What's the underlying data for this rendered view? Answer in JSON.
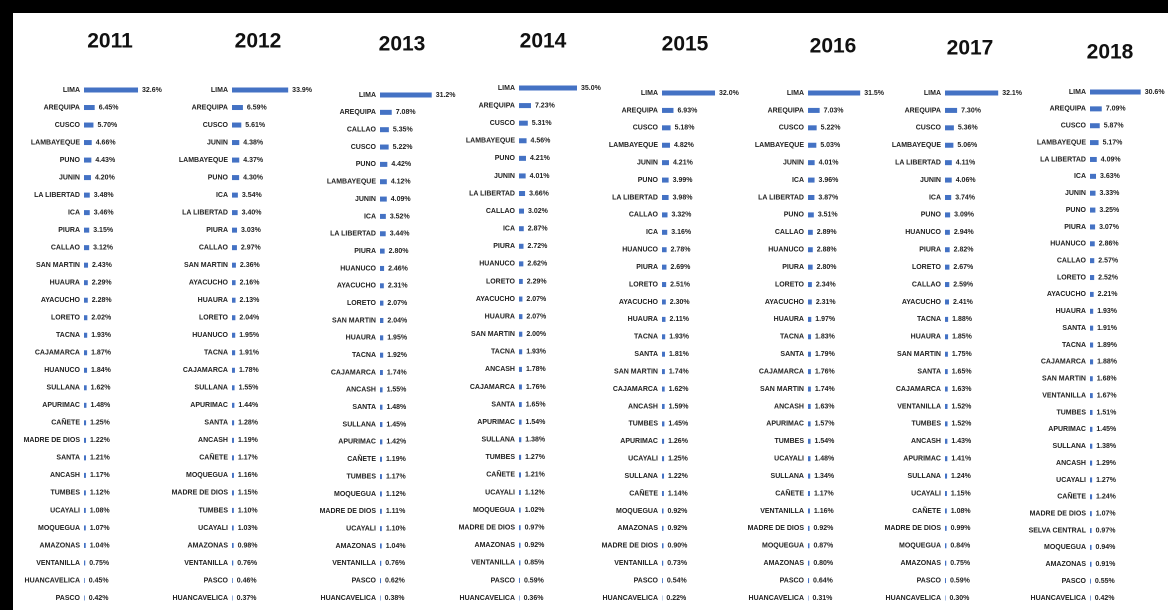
{
  "chart_data": [
    {
      "type": "bar",
      "orientation": "horizontal",
      "title": "2011",
      "color": "#4472c4",
      "xlim": [
        0,
        35
      ],
      "categories": [
        "LIMA",
        "AREQUIPA",
        "CUSCO",
        "LAMBAYEQUE",
        "PUNO",
        "JUNIN",
        "LA LIBERTAD",
        "ICA",
        "PIURA",
        "CALLAO",
        "SAN MARTIN",
        "HUAURA",
        "AYACUCHO",
        "LORETO",
        "TACNA",
        "CAJAMARCA",
        "HUANUCO",
        "SULLANA",
        "APURIMAC",
        "CAÑETE",
        "MADRE DE DIOS",
        "SANTA",
        "ANCASH",
        "TUMBES",
        "UCAYALI",
        "MOQUEGUA",
        "AMAZONAS",
        "VENTANILLA",
        "HUANCAVELICA",
        "PASCO"
      ],
      "values": [
        32.6,
        6.45,
        5.7,
        4.66,
        4.43,
        4.2,
        3.48,
        3.46,
        3.15,
        3.12,
        2.43,
        2.29,
        2.28,
        2.02,
        1.93,
        1.87,
        1.84,
        1.62,
        1.48,
        1.25,
        1.22,
        1.21,
        1.17,
        1.12,
        1.08,
        1.07,
        1.04,
        0.75,
        0.45,
        0.42
      ],
      "value_labels": [
        "32.6%",
        "6.45%",
        "5.70%",
        "4.66%",
        "4.43%",
        "4.20%",
        "3.48%",
        "3.46%",
        "3.15%",
        "3.12%",
        "2.43%",
        "2.29%",
        "2.28%",
        "2.02%",
        "1.93%",
        "1.87%",
        "1.84%",
        "1.62%",
        "1.48%",
        "1.25%",
        "1.22%",
        "1.21%",
        "1.17%",
        "1.12%",
        "1.08%",
        "1.07%",
        "1.04%",
        "0.75%",
        "0.45%",
        "0.42%"
      ]
    },
    {
      "type": "bar",
      "orientation": "horizontal",
      "title": "2012",
      "color": "#4472c4",
      "xlim": [
        0,
        35
      ],
      "categories": [
        "LIMA",
        "AREQUIPA",
        "CUSCO",
        "JUNIN",
        "LAMBAYEQUE",
        "PUNO",
        "ICA",
        "LA LIBERTAD",
        "PIURA",
        "CALLAO",
        "SAN MARTIN",
        "AYACUCHO",
        "HUAURA",
        "LORETO",
        "HUANUCO",
        "TACNA",
        "CAJAMARCA",
        "SULLANA",
        "APURIMAC",
        "SANTA",
        "ANCASH",
        "CAÑETE",
        "MOQUEGUA",
        "MADRE DE DIOS",
        "TUMBES",
        "UCAYALI",
        "AMAZONAS",
        "VENTANILLA",
        "PASCO",
        "HUANCAVELICA"
      ],
      "values": [
        33.9,
        6.59,
        5.61,
        4.38,
        4.37,
        4.3,
        3.54,
        3.4,
        3.03,
        2.97,
        2.36,
        2.16,
        2.13,
        2.04,
        1.95,
        1.91,
        1.78,
        1.55,
        1.44,
        1.28,
        1.19,
        1.17,
        1.16,
        1.15,
        1.1,
        1.03,
        0.98,
        0.76,
        0.46,
        0.37
      ],
      "value_labels": [
        "33.9%",
        "6.59%",
        "5.61%",
        "4.38%",
        "4.37%",
        "4.30%",
        "3.54%",
        "3.40%",
        "3.03%",
        "2.97%",
        "2.36%",
        "2.16%",
        "2.13%",
        "2.04%",
        "1.95%",
        "1.91%",
        "1.78%",
        "1.55%",
        "1.44%",
        "1.28%",
        "1.19%",
        "1.17%",
        "1.16%",
        "1.15%",
        "1.10%",
        "1.03%",
        "0.98%",
        "0.76%",
        "0.46%",
        "0.37%"
      ]
    },
    {
      "type": "bar",
      "orientation": "horizontal",
      "title": "2013",
      "color": "#4472c4",
      "xlim": [
        0,
        35
      ],
      "categories": [
        "LIMA",
        "AREQUIPA",
        "CALLAO",
        "CUSCO",
        "PUNO",
        "LAMBAYEQUE",
        "JUNIN",
        "ICA",
        "LA LIBERTAD",
        "PIURA",
        "HUANUCO",
        "AYACUCHO",
        "LORETO",
        "SAN MARTIN",
        "HUAURA",
        "TACNA",
        "CAJAMARCA",
        "ANCASH",
        "SANTA",
        "SULLANA",
        "APURIMAC",
        "CAÑETE",
        "TUMBES",
        "MOQUEGUA",
        "MADRE DE DIOS",
        "UCAYALI",
        "AMAZONAS",
        "VENTANILLA",
        "PASCO",
        "HUANCAVELICA"
      ],
      "values": [
        31.2,
        7.08,
        5.35,
        5.22,
        4.42,
        4.12,
        4.09,
        3.52,
        3.44,
        2.8,
        2.46,
        2.31,
        2.07,
        2.04,
        1.95,
        1.92,
        1.74,
        1.55,
        1.48,
        1.45,
        1.42,
        1.19,
        1.17,
        1.12,
        1.11,
        1.1,
        1.04,
        0.76,
        0.62,
        0.38
      ],
      "value_labels": [
        "31.2%",
        "7.08%",
        "5.35%",
        "5.22%",
        "4.42%",
        "4.12%",
        "4.09%",
        "3.52%",
        "3.44%",
        "2.80%",
        "2.46%",
        "2.31%",
        "2.07%",
        "2.04%",
        "1.95%",
        "1.92%",
        "1.74%",
        "1.55%",
        "1.48%",
        "1.45%",
        "1.42%",
        "1.19%",
        "1.17%",
        "1.12%",
        "1.11%",
        "1.10%",
        "1.04%",
        "0.76%",
        "0.62%",
        "0.38%"
      ]
    },
    {
      "type": "bar",
      "orientation": "horizontal",
      "title": "2014",
      "color": "#4472c4",
      "xlim": [
        0,
        35
      ],
      "categories": [
        "LIMA",
        "AREQUIPA",
        "CUSCO",
        "LAMBAYEQUE",
        "PUNO",
        "JUNIN",
        "LA LIBERTAD",
        "CALLAO",
        "ICA",
        "PIURA",
        "HUANUCO",
        "LORETO",
        "AYACUCHO",
        "HUAURA",
        "SAN MARTIN",
        "TACNA",
        "ANCASH",
        "CAJAMARCA",
        "SANTA",
        "APURIMAC",
        "SULLANA",
        "TUMBES",
        "CAÑETE",
        "UCAYALI",
        "MOQUEGUA",
        "MADRE DE DIOS",
        "AMAZONAS",
        "VENTANILLA",
        "PASCO",
        "HUANCAVELICA"
      ],
      "values": [
        35.0,
        7.23,
        5.31,
        4.56,
        4.21,
        4.01,
        3.66,
        3.02,
        2.87,
        2.72,
        2.62,
        2.29,
        2.07,
        2.07,
        2.0,
        1.93,
        1.78,
        1.76,
        1.65,
        1.54,
        1.38,
        1.27,
        1.21,
        1.12,
        1.02,
        0.97,
        0.92,
        0.85,
        0.59,
        0.36
      ],
      "value_labels": [
        "35.0%",
        "7.23%",
        "5.31%",
        "4.56%",
        "4.21%",
        "4.01%",
        "3.66%",
        "3.02%",
        "2.87%",
        "2.72%",
        "2.62%",
        "2.29%",
        "2.07%",
        "2.07%",
        "2.00%",
        "1.93%",
        "1.78%",
        "1.76%",
        "1.65%",
        "1.54%",
        "1.38%",
        "1.27%",
        "1.21%",
        "1.12%",
        "1.02%",
        "0.97%",
        "0.92%",
        "0.85%",
        "0.59%",
        "0.36%"
      ]
    },
    {
      "type": "bar",
      "orientation": "horizontal",
      "title": "2015",
      "color": "#4472c4",
      "xlim": [
        0,
        35
      ],
      "categories": [
        "LIMA",
        "AREQUIPA",
        "CUSCO",
        "LAMBAYEQUE",
        "JUNIN",
        "PUNO",
        "LA LIBERTAD",
        "CALLAO",
        "ICA",
        "HUANUCO",
        "PIURA",
        "LORETO",
        "AYACUCHO",
        "HUAURA",
        "TACNA",
        "SANTA",
        "SAN MARTIN",
        "CAJAMARCA",
        "ANCASH",
        "TUMBES",
        "APURIMAC",
        "UCAYALI",
        "SULLANA",
        "CAÑETE",
        "MOQUEGUA",
        "AMAZONAS",
        "MADRE DE DIOS",
        "VENTANILLA",
        "PASCO",
        "HUANCAVELICA"
      ],
      "values": [
        32.0,
        6.93,
        5.18,
        4.82,
        4.21,
        3.99,
        3.98,
        3.32,
        3.16,
        2.78,
        2.69,
        2.51,
        2.3,
        2.11,
        1.93,
        1.81,
        1.74,
        1.62,
        1.59,
        1.45,
        1.26,
        1.25,
        1.22,
        1.14,
        0.92,
        0.92,
        0.9,
        0.73,
        0.54,
        0.22
      ],
      "value_labels": [
        "32.0%",
        "6.93%",
        "5.18%",
        "4.82%",
        "4.21%",
        "3.99%",
        "3.98%",
        "3.32%",
        "3.16%",
        "2.78%",
        "2.69%",
        "2.51%",
        "2.30%",
        "2.11%",
        "1.93%",
        "1.81%",
        "1.74%",
        "1.62%",
        "1.59%",
        "1.45%",
        "1.26%",
        "1.25%",
        "1.22%",
        "1.14%",
        "0.92%",
        "0.92%",
        "0.90%",
        "0.73%",
        "0.54%",
        "0.22%"
      ]
    },
    {
      "type": "bar",
      "orientation": "horizontal",
      "title": "2016",
      "color": "#4472c4",
      "xlim": [
        0,
        35
      ],
      "categories": [
        "LIMA",
        "AREQUIPA",
        "CUSCO",
        "LAMBAYEQUE",
        "JUNIN",
        "ICA",
        "LA LIBERTAD",
        "PUNO",
        "CALLAO",
        "HUANUCO",
        "PIURA",
        "LORETO",
        "AYACUCHO",
        "HUAURA",
        "TACNA",
        "SANTA",
        "CAJAMARCA",
        "SAN MARTIN",
        "ANCASH",
        "APURIMAC",
        "TUMBES",
        "UCAYALI",
        "SULLANA",
        "CAÑETE",
        "VENTANILLA",
        "MADRE DE DIOS",
        "MOQUEGUA",
        "AMAZONAS",
        "PASCO",
        "HUANCAVELICA"
      ],
      "values": [
        31.5,
        7.03,
        5.22,
        5.03,
        4.01,
        3.96,
        3.87,
        3.51,
        2.89,
        2.88,
        2.8,
        2.34,
        2.31,
        1.97,
        1.83,
        1.79,
        1.76,
        1.74,
        1.63,
        1.57,
        1.54,
        1.48,
        1.34,
        1.17,
        1.16,
        0.92,
        0.87,
        0.8,
        0.64,
        0.31
      ],
      "value_labels": [
        "31.5%",
        "7.03%",
        "5.22%",
        "5.03%",
        "4.01%",
        "3.96%",
        "3.87%",
        "3.51%",
        "2.89%",
        "2.88%",
        "2.80%",
        "2.34%",
        "2.31%",
        "1.97%",
        "1.83%",
        "1.79%",
        "1.76%",
        "1.74%",
        "1.63%",
        "1.57%",
        "1.54%",
        "1.48%",
        "1.34%",
        "1.17%",
        "1.16%",
        "0.92%",
        "0.87%",
        "0.80%",
        "0.64%",
        "0.31%"
      ]
    },
    {
      "type": "bar",
      "orientation": "horizontal",
      "title": "2017",
      "color": "#4472c4",
      "xlim": [
        0,
        35
      ],
      "categories": [
        "LIMA",
        "AREQUIPA",
        "CUSCO",
        "LAMBAYEQUE",
        "LA LIBERTAD",
        "JUNIN",
        "ICA",
        "PUNO",
        "HUANUCO",
        "PIURA",
        "LORETO",
        "CALLAO",
        "AYACUCHO",
        "TACNA",
        "HUAURA",
        "SAN MARTIN",
        "SANTA",
        "CAJAMARCA",
        "VENTANILLA",
        "TUMBES",
        "ANCASH",
        "APURIMAC",
        "SULLANA",
        "UCAYALI",
        "CAÑETE",
        "MADRE DE DIOS",
        "MOQUEGUA",
        "AMAZONAS",
        "PASCO",
        "HUANCAVELICA"
      ],
      "values": [
        32.1,
        7.3,
        5.36,
        5.06,
        4.11,
        4.06,
        3.74,
        3.09,
        2.94,
        2.82,
        2.67,
        2.59,
        2.41,
        1.88,
        1.85,
        1.75,
        1.65,
        1.63,
        1.52,
        1.52,
        1.43,
        1.41,
        1.24,
        1.15,
        1.08,
        0.99,
        0.84,
        0.75,
        0.59,
        0.3
      ],
      "value_labels": [
        "32.1%",
        "7.30%",
        "5.36%",
        "5.06%",
        "4.11%",
        "4.06%",
        "3.74%",
        "3.09%",
        "2.94%",
        "2.82%",
        "2.67%",
        "2.59%",
        "2.41%",
        "1.88%",
        "1.85%",
        "1.75%",
        "1.65%",
        "1.63%",
        "1.52%",
        "1.52%",
        "1.43%",
        "1.41%",
        "1.24%",
        "1.15%",
        "1.08%",
        "0.99%",
        "0.84%",
        "0.75%",
        "0.59%",
        "0.30%"
      ]
    },
    {
      "type": "bar",
      "orientation": "horizontal",
      "title": "2018",
      "color": "#4472c4",
      "xlim": [
        0,
        35
      ],
      "categories": [
        "LIMA",
        "AREQUIPA",
        "CUSCO",
        "LAMBAYEQUE",
        "LA LIBERTAD",
        "ICA",
        "JUNIN",
        "PUNO",
        "PIURA",
        "HUANUCO",
        "CALLAO",
        "LORETO",
        "AYACUCHO",
        "HUAURA",
        "SANTA",
        "TACNA",
        "CAJAMARCA",
        "SAN MARTIN",
        "VENTANILLA",
        "TUMBES",
        "APURIMAC",
        "SULLANA",
        "ANCASH",
        "UCAYALI",
        "CAÑETE",
        "MADRE DE DIOS",
        "SELVA CENTRAL",
        "MOQUEGUA",
        "AMAZONAS",
        "PASCO",
        "HUANCAVELICA"
      ],
      "values": [
        30.6,
        7.09,
        5.87,
        5.17,
        4.09,
        3.63,
        3.33,
        3.25,
        3.07,
        2.86,
        2.57,
        2.52,
        2.21,
        1.93,
        1.91,
        1.89,
        1.88,
        1.68,
        1.67,
        1.51,
        1.45,
        1.38,
        1.29,
        1.27,
        1.24,
        1.07,
        0.97,
        0.94,
        0.91,
        0.55,
        0.42
      ],
      "value_labels": [
        "30.6%",
        "7.09%",
        "5.87%",
        "5.17%",
        "4.09%",
        "3.63%",
        "3.33%",
        "3.25%",
        "3.07%",
        "2.86%",
        "2.57%",
        "2.52%",
        "2.21%",
        "1.93%",
        "1.91%",
        "1.89%",
        "1.88%",
        "1.68%",
        "1.67%",
        "1.51%",
        "1.45%",
        "1.38%",
        "1.29%",
        "1.27%",
        "1.24%",
        "1.07%",
        "0.97%",
        "0.94%",
        "0.91%",
        "0.55%",
        "0.42%"
      ]
    }
  ]
}
